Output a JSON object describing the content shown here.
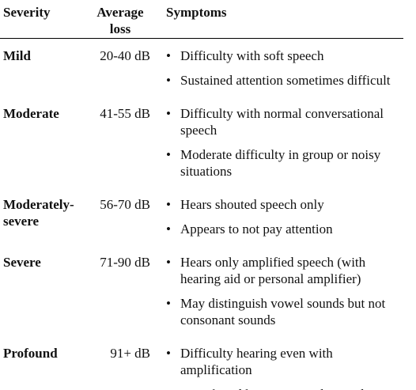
{
  "table": {
    "header": [
      "Severity",
      "Average loss",
      "Symptoms"
    ],
    "rows": [
      {
        "severity": "Mild",
        "loss": "20-40 dB",
        "symptoms": [
          "Difficulty with soft speech",
          "Sustained attention sometimes difficult"
        ]
      },
      {
        "severity": "Moderate",
        "loss": "41-55 dB",
        "symptoms": [
          "Difficulty with normal conversational speech",
          "Moderate difficulty in group or noisy situations"
        ]
      },
      {
        "severity": "Moderately-severe",
        "loss": "56-70 dB",
        "symptoms": [
          "Hears shouted speech only",
          "Appears to not pay attention"
        ]
      },
      {
        "severity": "Severe",
        "loss": "71-90 dB",
        "symptoms": [
          "Hears only amplified speech (with hearing aid or personal amplifier)",
          "May distinguish vowel sounds but not consonant sounds"
        ]
      },
      {
        "severity": "Profound",
        "loss": "91+ dB",
        "symptoms": [
          "Difficulty hearing even with amplification",
          "Speech and language are distorted"
        ]
      }
    ]
  }
}
